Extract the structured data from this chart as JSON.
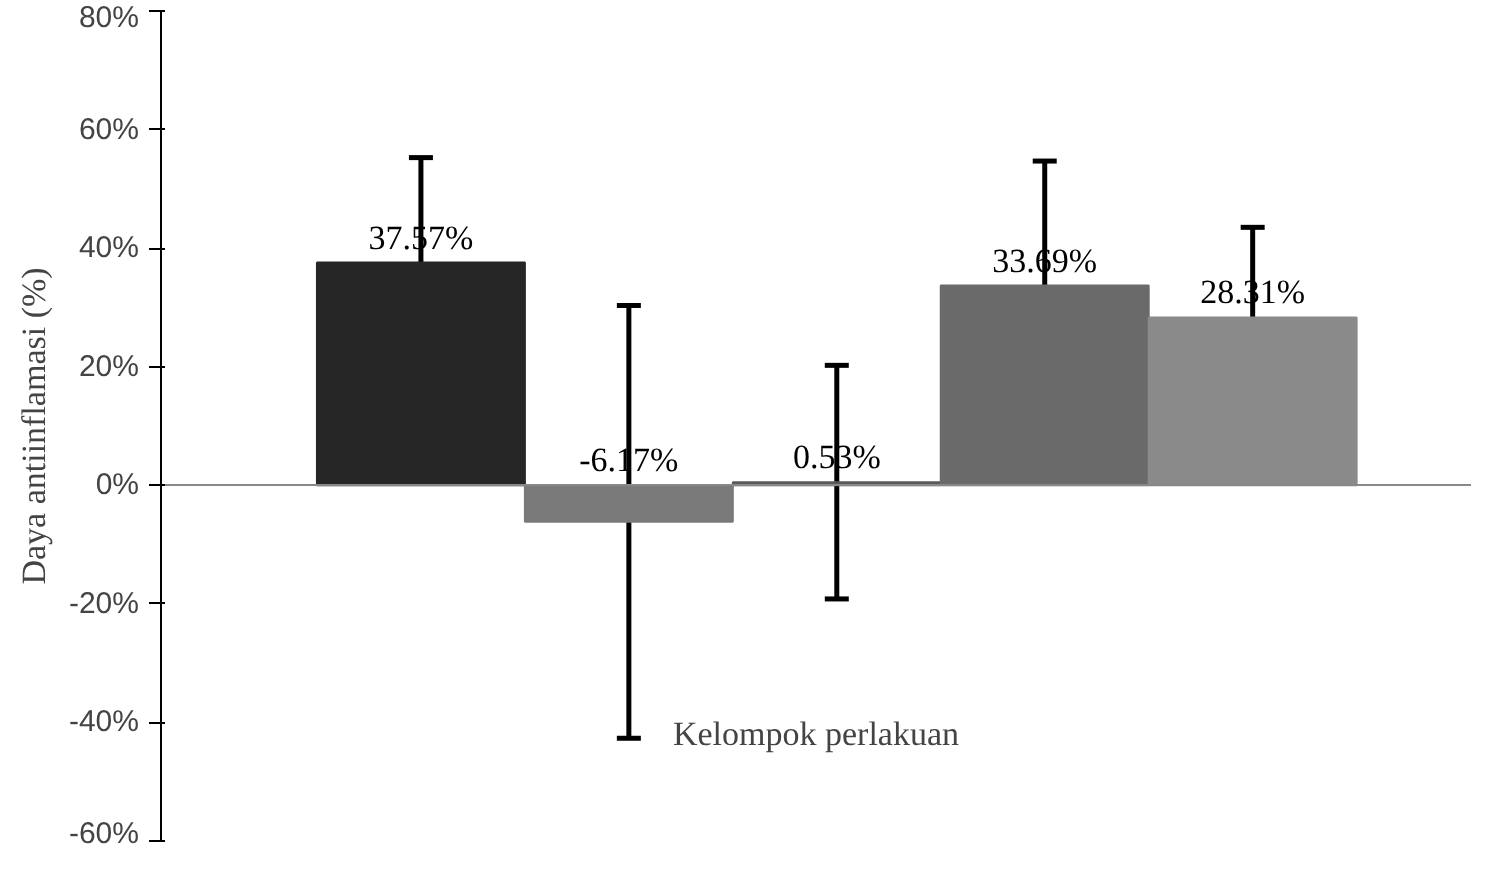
{
  "chart_data": {
    "type": "bar",
    "xlabel": "Kelompok perlakuan",
    "ylabel": "Daya antiinflamasi (%)",
    "categories": [
      null,
      null,
      null,
      null,
      null
    ],
    "values": [
      37.57,
      -6.17,
      0.53,
      33.69,
      28.31
    ],
    "colors": [
      "#262626",
      "#7a7a7a",
      "#5a5a5a",
      "#6a6a6a",
      "#8a8a8a"
    ],
    "errors": [
      17.7,
      36.5,
      19.7,
      21,
      15.2
    ],
    "value_labels": [
      "37.57%",
      "-6.17%",
      "0.53%",
      "33.69%",
      "28.31%"
    ],
    "ylim": [
      -60,
      80
    ],
    "yticks": [
      {
        "value": -60,
        "label": "-60%"
      },
      {
        "value": -40,
        "label": "-40%"
      },
      {
        "value": -20,
        "label": "-20%"
      },
      {
        "value": 0,
        "label": "0%"
      },
      {
        "value": 20,
        "label": "20%"
      },
      {
        "value": 40,
        "label": "40%"
      },
      {
        "value": 60,
        "label": "60%"
      },
      {
        "value": 80,
        "label": "80%"
      }
    ],
    "tick_labels": "y"
  }
}
